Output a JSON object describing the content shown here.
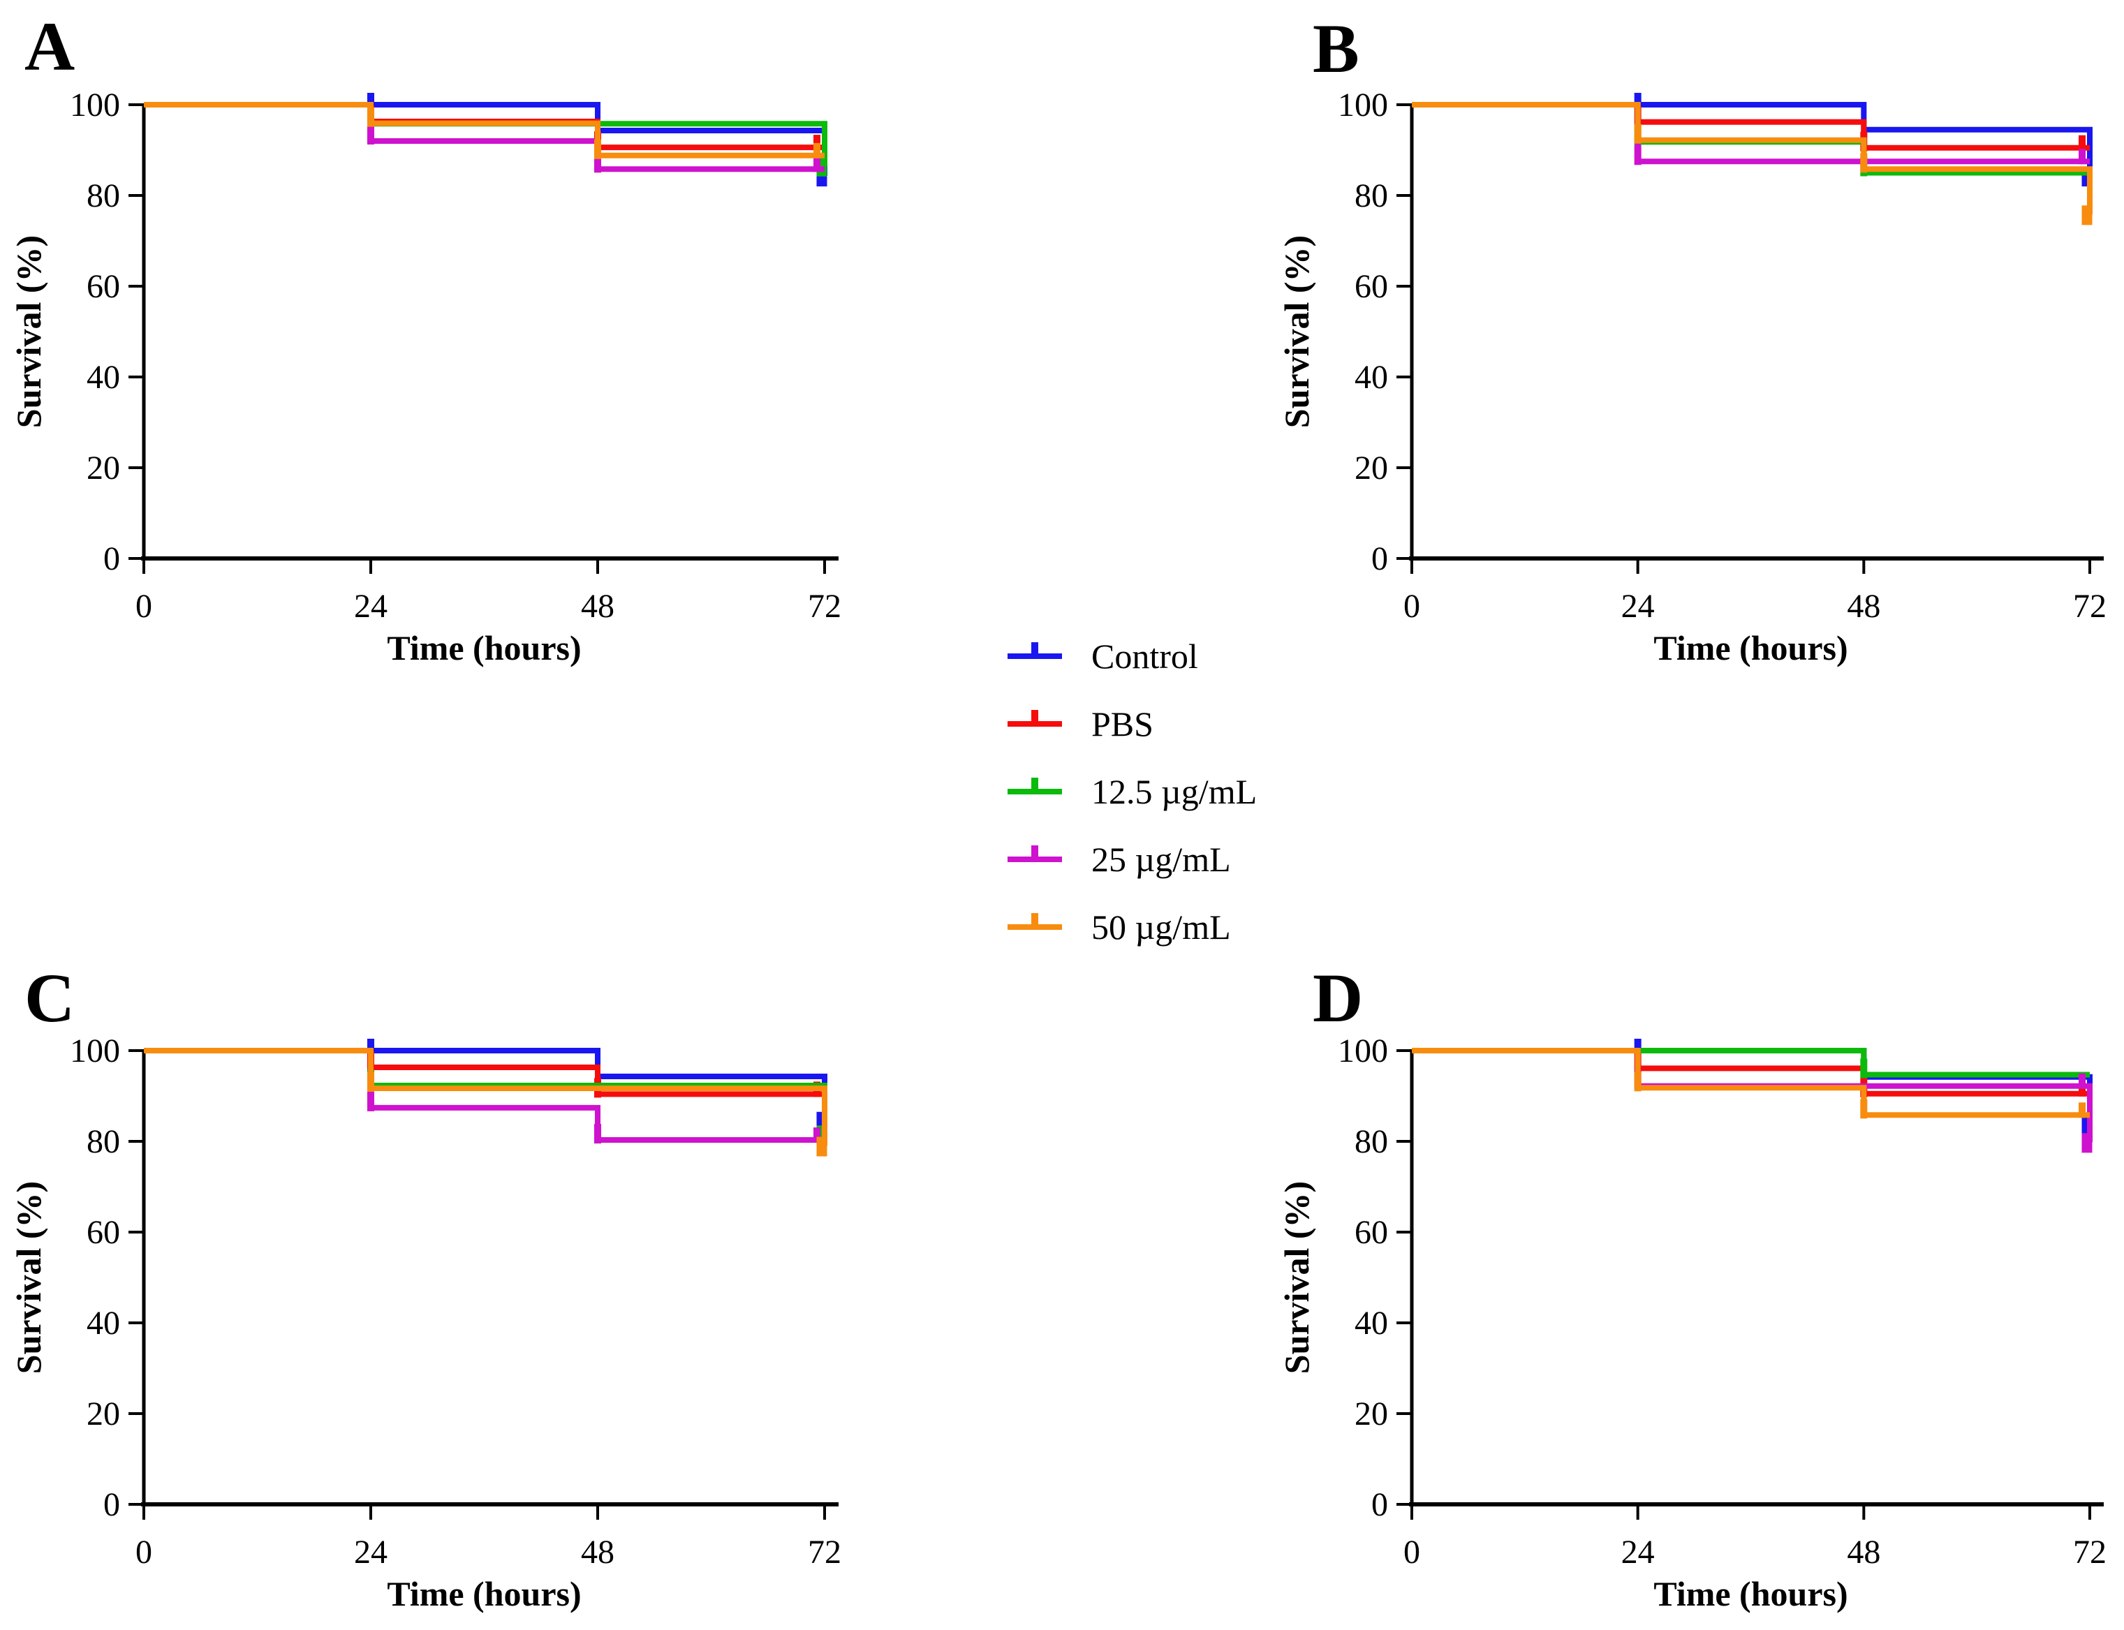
{
  "axes": {
    "x_label": "Time (hours)",
    "y_label": "Survival (%)",
    "x_ticks": [
      0,
      24,
      48,
      72
    ],
    "y_ticks": [
      0,
      20,
      40,
      60,
      80,
      100
    ],
    "xlim": [
      0,
      72
    ],
    "ylim": [
      0,
      100
    ]
  },
  "legend": {
    "items": [
      {
        "label": "Control",
        "color": "#1a16f0"
      },
      {
        "label": "PBS",
        "color": "#f50d0d"
      },
      {
        "label": "12.5 µg/mL",
        "color": "#0cba0c"
      },
      {
        "label": "25 µg/mL",
        "color": "#ce12ce"
      },
      {
        "label": "50 µg/mL",
        "color": "#f88c0e"
      }
    ]
  },
  "chart_data": [
    {
      "type": "line",
      "subtype": "kaplan-meier-step",
      "panel": "A",
      "xlabel": "Time (hours)",
      "ylabel": "Survival (%)",
      "x_breakpoints": [
        0,
        24,
        48,
        72
      ],
      "xlim": [
        0,
        72
      ],
      "ylim": [
        0,
        100
      ],
      "series": [
        {
          "name": "Control",
          "color": "#1a16f0",
          "levels": [
            100,
            100,
            94.3
          ],
          "end": 84.3,
          "censors": [
            24
          ]
        },
        {
          "name": "PBS",
          "color": "#f50d0d",
          "levels": [
            100,
            96.3,
            90.6
          ],
          "end": 90.6,
          "censors": [
            24,
            48,
            72
          ]
        },
        {
          "name": "12.5 µg/mL",
          "color": "#0cba0c",
          "levels": [
            100,
            95.8,
            95.8
          ],
          "end": 86.5,
          "censors": [
            24
          ]
        },
        {
          "name": "25 µg/mL",
          "color": "#ce12ce",
          "levels": [
            100,
            92.0,
            85.8
          ],
          "end": 85.8,
          "censors": [
            24,
            48,
            72
          ]
        },
        {
          "name": "50 µg/mL",
          "color": "#f88c0e",
          "levels": [
            100,
            95.9,
            88.8
          ],
          "end": 88.8,
          "censors": [
            24,
            48,
            72
          ]
        }
      ]
    },
    {
      "type": "line",
      "subtype": "kaplan-meier-step",
      "panel": "B",
      "xlabel": "Time (hours)",
      "ylabel": "Survival (%)",
      "x_breakpoints": [
        0,
        24,
        48,
        72
      ],
      "xlim": [
        0,
        72
      ],
      "ylim": [
        0,
        100
      ],
      "series": [
        {
          "name": "Control",
          "color": "#1a16f0",
          "levels": [
            100,
            100,
            94.5
          ],
          "end": 84.3,
          "censors": [
            24
          ]
        },
        {
          "name": "PBS",
          "color": "#f50d0d",
          "levels": [
            100,
            96.2,
            90.5
          ],
          "end": 90.5,
          "censors": [
            24,
            48,
            72
          ]
        },
        {
          "name": "12.5 µg/mL",
          "color": "#0cba0c",
          "levels": [
            100,
            91.8,
            85.0
          ],
          "end": 85.0,
          "censors": [
            24,
            48
          ]
        },
        {
          "name": "25 µg/mL",
          "color": "#ce12ce",
          "levels": [
            100,
            87.5,
            87.5
          ],
          "end": 87.5,
          "censors": [
            24,
            72
          ]
        },
        {
          "name": "50 µg/mL",
          "color": "#f88c0e",
          "levels": [
            100,
            92.2,
            85.8
          ],
          "end": 75.8,
          "censors": [
            24,
            48
          ]
        }
      ]
    },
    {
      "type": "line",
      "subtype": "kaplan-meier-step",
      "panel": "C",
      "xlabel": "Time (hours)",
      "ylabel": "Survival (%)",
      "x_breakpoints": [
        0,
        24,
        48,
        72
      ],
      "xlim": [
        0,
        72
      ],
      "ylim": [
        0,
        100
      ],
      "series": [
        {
          "name": "Control",
          "color": "#1a16f0",
          "levels": [
            100,
            100,
            94.3
          ],
          "end": 84.5,
          "censors": [
            24
          ]
        },
        {
          "name": "PBS",
          "color": "#f50d0d",
          "levels": [
            100,
            96.3,
            90.4
          ],
          "end": 90.4,
          "censors": [
            24,
            48,
            72
          ]
        },
        {
          "name": "12.5 µg/mL",
          "color": "#0cba0c",
          "levels": [
            100,
            92.3,
            92.3
          ],
          "end": 81.5,
          "censors": [
            24
          ]
        },
        {
          "name": "25 µg/mL",
          "color": "#ce12ce",
          "levels": [
            100,
            87.4,
            80.3
          ],
          "end": 80.3,
          "censors": [
            24,
            48,
            72
          ]
        },
        {
          "name": "50 µg/mL",
          "color": "#f88c0e",
          "levels": [
            100,
            91.7,
            91.7
          ],
          "end": 79.0,
          "censors": [
            24
          ]
        }
      ]
    },
    {
      "type": "line",
      "subtype": "kaplan-meier-step",
      "panel": "D",
      "xlabel": "Time (hours)",
      "ylabel": "Survival (%)",
      "x_breakpoints": [
        0,
        24,
        48,
        72
      ],
      "xlim": [
        0,
        72
      ],
      "ylim": [
        0,
        100
      ],
      "series": [
        {
          "name": "Control",
          "color": "#1a16f0",
          "levels": [
            100,
            100,
            94.2
          ],
          "end": 84.0,
          "censors": [
            24
          ]
        },
        {
          "name": "PBS",
          "color": "#f50d0d",
          "levels": [
            100,
            96.1,
            90.5
          ],
          "end": 90.5,
          "censors": [
            24,
            48,
            72
          ]
        },
        {
          "name": "12.5 µg/mL",
          "color": "#0cba0c",
          "levels": [
            100,
            100,
            94.7
          ],
          "end": 94.7,
          "censors": [
            48
          ]
        },
        {
          "name": "25 µg/mL",
          "color": "#ce12ce",
          "levels": [
            100,
            92.2,
            92.2
          ],
          "end": 79.8,
          "censors": [
            24,
            72
          ]
        },
        {
          "name": "50 µg/mL",
          "color": "#f88c0e",
          "levels": [
            100,
            91.8,
            85.8
          ],
          "end": 85.8,
          "censors": [
            24,
            48,
            72
          ]
        }
      ]
    }
  ]
}
